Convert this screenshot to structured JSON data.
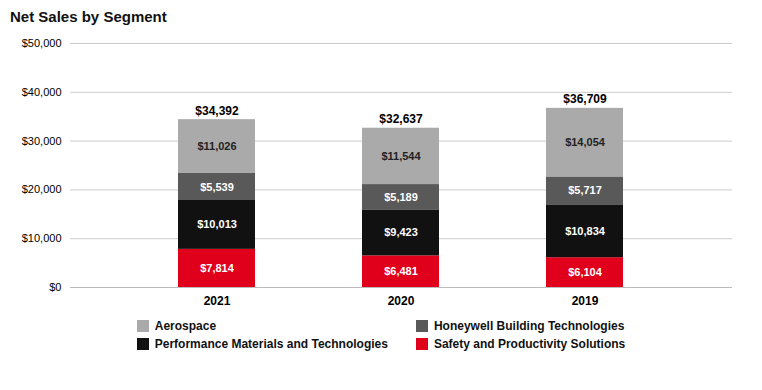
{
  "chart_data": {
    "type": "bar",
    "stacked": true,
    "title": "Net Sales by Segment",
    "categories": [
      "2021",
      "2020",
      "2019"
    ],
    "series": [
      {
        "name": "Safety and Productivity Solutions",
        "color": "#e0001b",
        "values": [
          7814,
          6481,
          6104
        ],
        "value_labels": [
          "$7,814",
          "$6,481",
          "$6,104"
        ]
      },
      {
        "name": "Performance Materials and Technologies",
        "color": "#111111",
        "values": [
          10013,
          9423,
          10834
        ],
        "value_labels": [
          "$10,013",
          "$9,423",
          "$10,834"
        ]
      },
      {
        "name": "Honeywell Building Technologies",
        "color": "#595959",
        "values": [
          5539,
          5189,
          5717
        ],
        "value_labels": [
          "$5,539",
          "$5,189",
          "$5,717"
        ]
      },
      {
        "name": "Aerospace",
        "color": "#aaaaaa",
        "values": [
          11026,
          11544,
          14054
        ],
        "value_labels": [
          "$11,026",
          "$11,544",
          "$14,054"
        ]
      }
    ],
    "totals": [
      34392,
      32637,
      36709
    ],
    "total_labels": [
      "$34,392",
      "$32,637",
      "$36,709"
    ],
    "data_labels": true,
    "ylim": [
      0,
      50000
    ],
    "yticks": [
      {
        "value": 0,
        "label": "$0"
      },
      {
        "value": 10000,
        "label": "$10,000"
      },
      {
        "value": 20000,
        "label": "$20,000"
      },
      {
        "value": 30000,
        "label": "$30,000"
      },
      {
        "value": 40000,
        "label": "$40,000"
      },
      {
        "value": 50000,
        "label": "$50,000"
      }
    ],
    "grid": true,
    "legend": "bottom"
  }
}
